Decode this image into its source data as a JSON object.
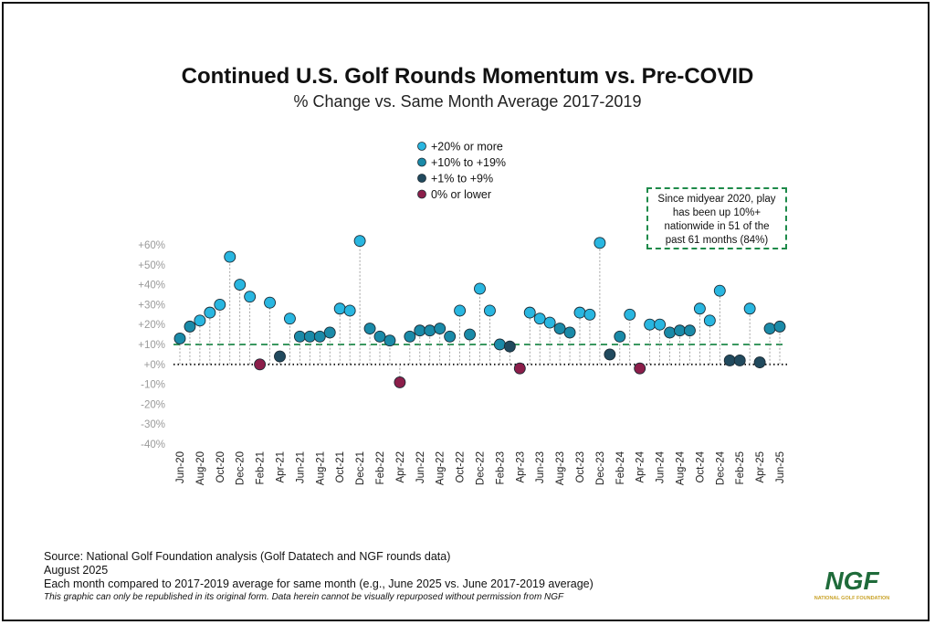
{
  "title": "Continued U.S. Golf Rounds Momentum vs. Pre-COVID",
  "subtitle": "% Change vs. Same Month Average 2017-2019",
  "callout": "Since midyear 2020, play has been up 10%+ nationwide in 51 of the past 61 months (84%)",
  "footer": {
    "source": "Source: National Golf Foundation analysis (Golf Datatech and NGF rounds data)",
    "date": "August 2025",
    "note": "Each month compared to 2017-2019 average for same month (e.g., June 2025 vs. June 2017-2019 average)",
    "disclaimer": "This graphic can only be republished in its original form. Data herein cannot be visually repurposed without permission from NGF"
  },
  "logo": {
    "text": "NGF",
    "tagline": "NATIONAL GOLF FOUNDATION",
    "color": "#1f6b3a",
    "tag_color": "#c9a227"
  },
  "chart_data": {
    "type": "scatter",
    "title": "Continued U.S. Golf Rounds Momentum vs. Pre-COVID",
    "subtitle": "% Change vs. Same Month Average 2017-2019",
    "ylim": [
      -40,
      60
    ],
    "yticks": [
      "+60%",
      "+50%",
      "+40%",
      "+30%",
      "+20%",
      "+10%",
      "+0%",
      "-10%",
      "-20%",
      "-30%",
      "-40%"
    ],
    "ytick_values": [
      60,
      50,
      40,
      30,
      20,
      10,
      0,
      -10,
      -20,
      -30,
      -40
    ],
    "reference_line": {
      "value": 10,
      "style": "dashed",
      "color": "#1e8a4a"
    },
    "zero_line": {
      "value": 0,
      "style": "dotted",
      "color": "#111111"
    },
    "grid": false,
    "legend_position": "top",
    "legend": [
      {
        "label": "+20% or more",
        "color": "#29b6e0"
      },
      {
        "label": "+10% to +19%",
        "color": "#1a8aa8"
      },
      {
        "label": "+1% to +9%",
        "color": "#214a5e"
      },
      {
        "label": "0% or lower",
        "color": "#8b1e4a"
      }
    ],
    "x_tick_labels": [
      "Jun-20",
      "Aug-20",
      "Oct-20",
      "Dec-20",
      "Feb-21",
      "Apr-21",
      "Jun-21",
      "Aug-21",
      "Oct-21",
      "Dec-21",
      "Feb-22",
      "Apr-22",
      "Jun-22",
      "Aug-22",
      "Oct-22",
      "Dec-22",
      "Feb-23",
      "Apr-23",
      "Jun-23",
      "Aug-23",
      "Oct-23",
      "Dec-23",
      "Feb-24",
      "Apr-24",
      "Jun-24",
      "Aug-24",
      "Oct-24",
      "Dec-24",
      "Feb-25",
      "Apr-25",
      "Jun-25"
    ],
    "x": [
      "Jun-20",
      "Jul-20",
      "Aug-20",
      "Sep-20",
      "Oct-20",
      "Nov-20",
      "Dec-20",
      "Jan-21",
      "Feb-21",
      "Mar-21",
      "Apr-21",
      "May-21",
      "Jun-21",
      "Jul-21",
      "Aug-21",
      "Sep-21",
      "Oct-21",
      "Nov-21",
      "Dec-21",
      "Jan-22",
      "Feb-22",
      "Mar-22",
      "Apr-22",
      "May-22",
      "Jun-22",
      "Jul-22",
      "Aug-22",
      "Sep-22",
      "Oct-22",
      "Nov-22",
      "Dec-22",
      "Jan-23",
      "Feb-23",
      "Mar-23",
      "Apr-23",
      "May-23",
      "Jun-23",
      "Jul-23",
      "Aug-23",
      "Sep-23",
      "Oct-23",
      "Nov-23",
      "Dec-23",
      "Jan-24",
      "Feb-24",
      "Mar-24",
      "Apr-24",
      "May-24",
      "Jun-24",
      "Jul-24",
      "Aug-24",
      "Sep-24",
      "Oct-24",
      "Nov-24",
      "Dec-24",
      "Jan-25",
      "Feb-25",
      "Mar-25",
      "Apr-25",
      "May-25",
      "Jun-25"
    ],
    "values": [
      13,
      19,
      22,
      26,
      30,
      54,
      40,
      34,
      0,
      31,
      4,
      23,
      14,
      14,
      14,
      16,
      28,
      27,
      62,
      18,
      14,
      12,
      -9,
      14,
      17,
      17,
      18,
      14,
      27,
      15,
      38,
      27,
      10,
      9,
      -2,
      26,
      23,
      21,
      18,
      16,
      26,
      25,
      61,
      5,
      14,
      25,
      -2,
      20,
      20,
      16,
      17,
      17,
      28,
      22,
      37,
      2,
      2,
      28,
      1,
      18,
      19
    ]
  }
}
